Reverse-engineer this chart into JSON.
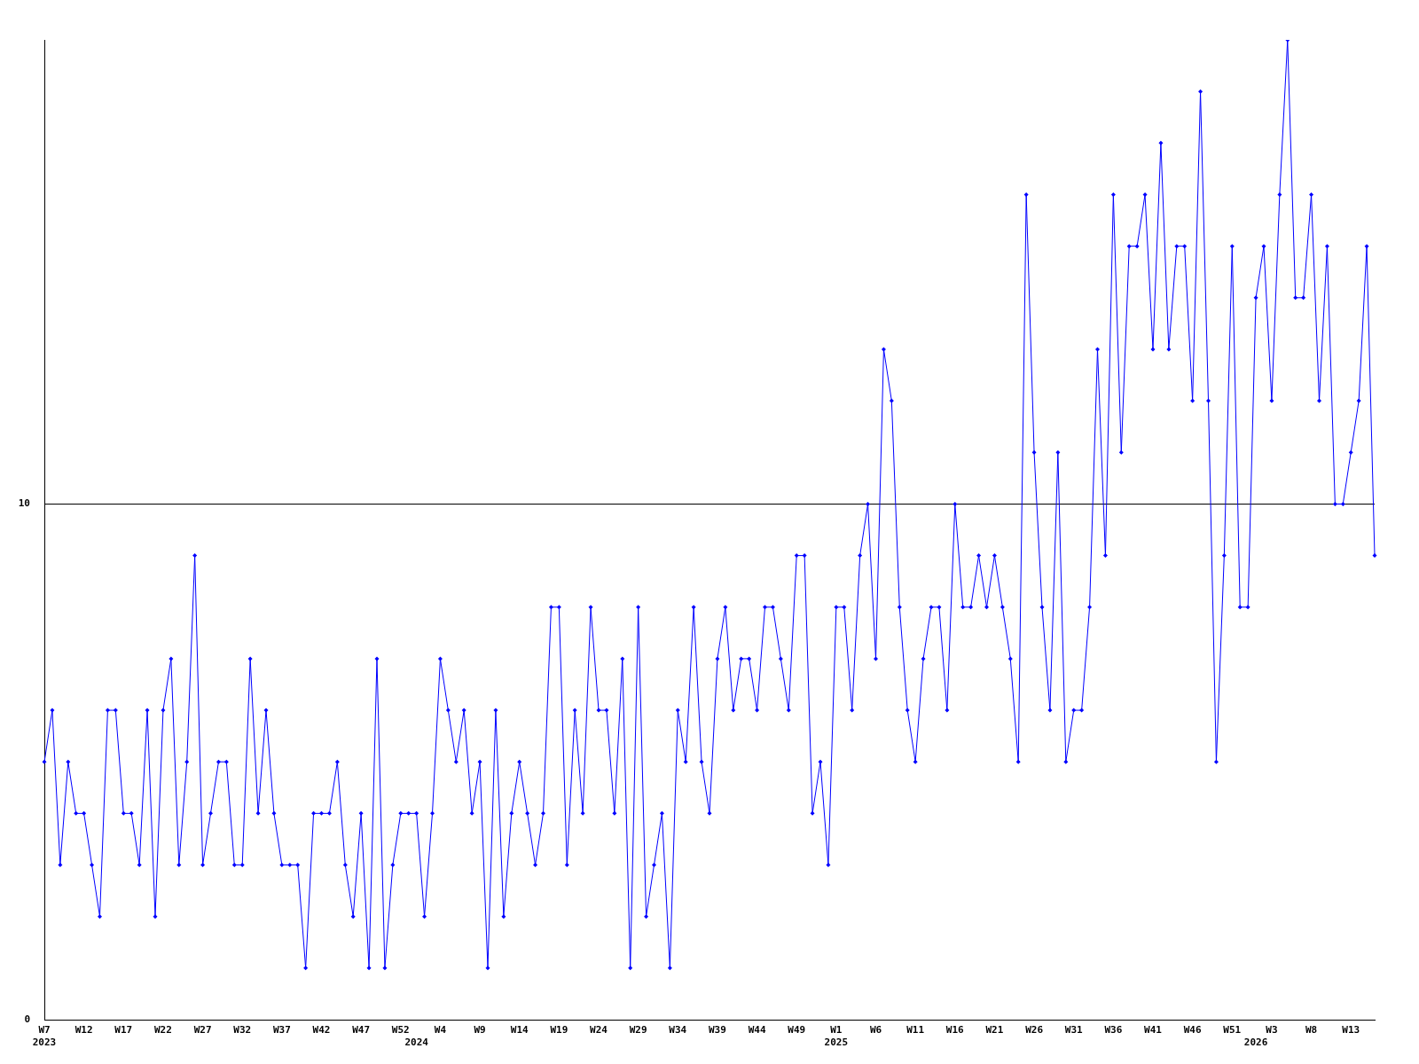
{
  "chart_data": {
    "type": "line",
    "categories": [
      "W7\n2023",
      null,
      null,
      null,
      null,
      "W12",
      null,
      null,
      null,
      null,
      "W17",
      null,
      null,
      null,
      null,
      "W22",
      null,
      null,
      null,
      null,
      "W27",
      null,
      null,
      null,
      null,
      "W32",
      null,
      null,
      null,
      null,
      "W37",
      null,
      null,
      null,
      null,
      "W42",
      null,
      null,
      null,
      null,
      "W47",
      null,
      null,
      null,
      null,
      "W52",
      null,
      "\n2024",
      null,
      null,
      "W4",
      null,
      null,
      null,
      null,
      "W9",
      null,
      null,
      null,
      null,
      "W14",
      null,
      null,
      null,
      null,
      "W19",
      null,
      null,
      null,
      null,
      "W24",
      null,
      null,
      null,
      null,
      "W29",
      null,
      null,
      null,
      null,
      "W34",
      null,
      null,
      null,
      null,
      "W39",
      null,
      null,
      null,
      null,
      "W44",
      null,
      null,
      null,
      null,
      "W49",
      null,
      null,
      null,
      null,
      "W1\n2025",
      null,
      null,
      null,
      null,
      "W6",
      null,
      null,
      null,
      null,
      "W11",
      null,
      null,
      null,
      null,
      "W16",
      null,
      null,
      null,
      null,
      "W21",
      null,
      null,
      null,
      null,
      "W26",
      null,
      null,
      null,
      null,
      "W31",
      null,
      null,
      null,
      null,
      "W36",
      null,
      null,
      null,
      null,
      "W41",
      null,
      null,
      null,
      null,
      "W46",
      null,
      null,
      null,
      null,
      "W51",
      null,
      null,
      "\n2026",
      null,
      "W3",
      null,
      null,
      null,
      null,
      "W8",
      null,
      null,
      null,
      null,
      "W13",
      null,
      null,
      null
    ],
    "series": [
      {
        "color": "#0000ff",
        "values": [
          5,
          6,
          3,
          5,
          4,
          4,
          3,
          2,
          6,
          6,
          4,
          4,
          3,
          6,
          2,
          6,
          7,
          3,
          5,
          9,
          3,
          4,
          5,
          5,
          3,
          3,
          7,
          4,
          6,
          4,
          3,
          3,
          3,
          1,
          4,
          4,
          4,
          5,
          3,
          2,
          4,
          1,
          7,
          1,
          3,
          4,
          4,
          4,
          2,
          4,
          7,
          6,
          5,
          6,
          4,
          5,
          1,
          6,
          2,
          4,
          5,
          4,
          3,
          4,
          8,
          8,
          3,
          6,
          4,
          8,
          6,
          6,
          4,
          7,
          1,
          8,
          2,
          3,
          4,
          1,
          6,
          5,
          8,
          5,
          4,
          7,
          8,
          6,
          7,
          7,
          6,
          8,
          8,
          7,
          6,
          9,
          9,
          4,
          5,
          3,
          8,
          8,
          6,
          9,
          10,
          7,
          13,
          12,
          8,
          6,
          5,
          7,
          8,
          8,
          6,
          10,
          8,
          8,
          9,
          8,
          9,
          8,
          7,
          5,
          16,
          11,
          8,
          6,
          11,
          5,
          6,
          6,
          8,
          13,
          9,
          16,
          11,
          15,
          15,
          16,
          13,
          17,
          13,
          15,
          15,
          12,
          18,
          12,
          5,
          9,
          15,
          8,
          8,
          14,
          15,
          12,
          16,
          19,
          14,
          14,
          16,
          12,
          15,
          10,
          10,
          11,
          12,
          15,
          9
        ]
      }
    ],
    "ylim": [
      0,
      19
    ],
    "yticks": [
      0,
      10
    ],
    "grid": "y",
    "marker": "diamond",
    "line_style": "solid"
  }
}
